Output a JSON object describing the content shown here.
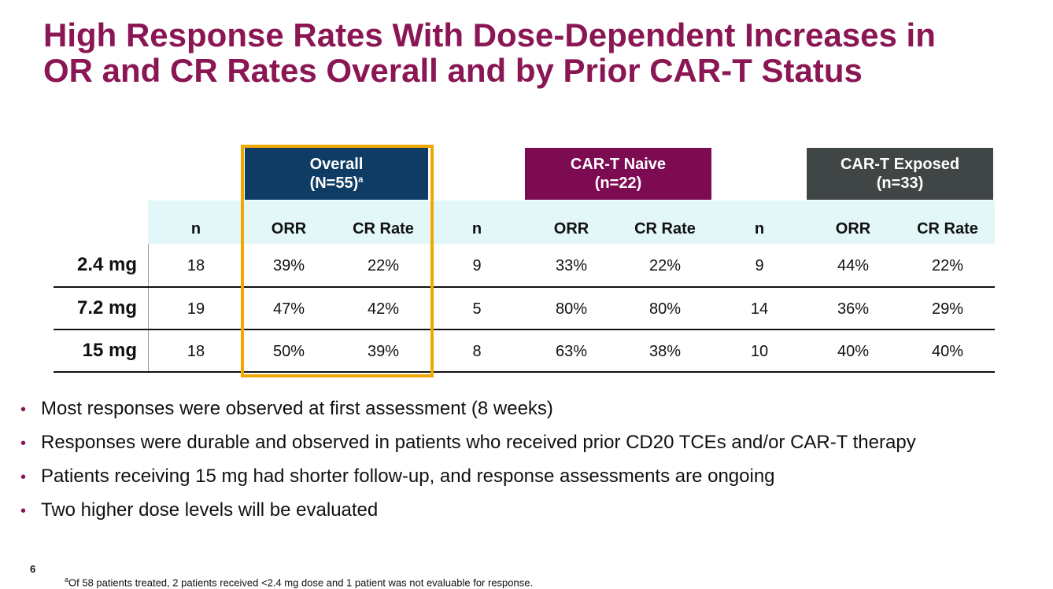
{
  "title": {
    "line1": "High Response Rates With Dose-Dependent Increases in",
    "line2": "OR and CR Rates Overall and by Prior CAR-T Status"
  },
  "table": {
    "groups": [
      {
        "label": "Overall",
        "sub": "(N=55)",
        "sup": "a",
        "color": "#0f3c64"
      },
      {
        "label": "CAR-T Naive",
        "sub": "(n=22)",
        "sup": "",
        "color": "#7c0b52"
      },
      {
        "label": "CAR-T Exposed",
        "sub": "(n=33)",
        "sup": "",
        "color": "#404545"
      }
    ],
    "columns": [
      "n",
      "ORR",
      "CR Rate",
      "n",
      "ORR",
      "CR Rate",
      "n",
      "ORR",
      "CR Rate"
    ],
    "rows": [
      {
        "dose": "2.4 mg",
        "values": [
          "18",
          "39%",
          "22%",
          "9",
          "33%",
          "22%",
          "9",
          "44%",
          "22%"
        ]
      },
      {
        "dose": "7.2 mg",
        "values": [
          "19",
          "47%",
          "42%",
          "5",
          "80%",
          "80%",
          "14",
          "36%",
          "29%"
        ]
      },
      {
        "dose": "15 mg",
        "values": [
          "18",
          "50%",
          "39%",
          "8",
          "63%",
          "38%",
          "10",
          "40%",
          "40%"
        ]
      }
    ],
    "highlight_color": "#f0a800"
  },
  "bullets": [
    "Most responses were observed at first assessment (8 weeks)",
    "Responses were durable and observed in patients who received prior CD20 TCEs and/or CAR-T therapy",
    "Patients receiving 15 mg had shorter follow-up, and response assessments are ongoing",
    "Two higher dose levels will be evaluated"
  ],
  "bullet_glyph": "•",
  "page_number": "6",
  "footnote": {
    "marker": "a",
    "text": "Of 58 patients treated, 2 patients received <2.4 mg dose and 1 patient was not evaluable for response."
  }
}
